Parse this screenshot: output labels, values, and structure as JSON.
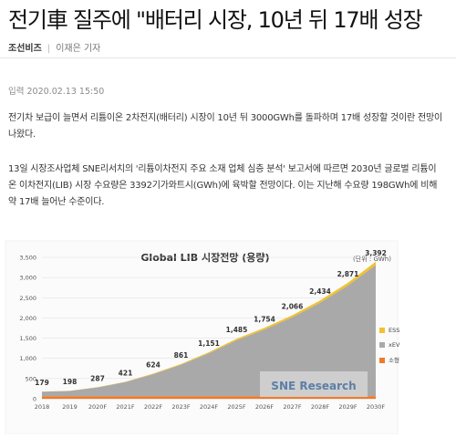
{
  "article": {
    "headline": "전기車 질주에 \"배터리 시장, 10년 뒤 17배 성장",
    "publisher": "조선비즈",
    "reporter": "이재은 기자",
    "date_label": "입력 2020.02.13 15:50",
    "paragraph1": "전기차 보급이 늘면서 리튬이온 2차전지(배터리) 시장이 10년 뒤 3000GWh를 돌파하며 17배 성장할 것이란 전망이 나왔다.",
    "paragraph2": "13일 시장조사업체 SNE리서치의 '리튬이차전지 주요 소재 업체 심층 분석' 보고서에 따르면 2030년 글로벌 리튬이온 이차전지(LIB) 시장 수요량은 3392기가와트시(GWh)에 육박할 전망이다. 이는 지난해 수요량 198GWh에 비해 약 17배 늘어난 수준이다."
  },
  "chart_data": {
    "type": "area",
    "title": "Global LIB 시장전망 (용량)",
    "unit_label": "(단위 : GWh)",
    "categories": [
      "2018",
      "2019",
      "2020F",
      "2021F",
      "2022F",
      "2023F",
      "2024F",
      "2025F",
      "2026F",
      "2027F",
      "2028F",
      "2029F",
      "2030F"
    ],
    "totals": [
      179,
      198,
      287,
      421,
      624,
      861,
      1151,
      1485,
      1754,
      2066,
      2434,
      2871,
      3392
    ],
    "ylim": [
      0,
      3500
    ],
    "yticks": [
      0,
      500,
      1000,
      1500,
      2000,
      2500,
      3000,
      3500
    ],
    "grid": true,
    "legend_position": "right",
    "series": [
      {
        "name": "ESS",
        "color": "#f2c12e"
      },
      {
        "name": "xEV",
        "color": "#a9a9a9"
      },
      {
        "name": "소형",
        "color": "#f07a2a"
      }
    ],
    "watermark": "SNE Research"
  }
}
